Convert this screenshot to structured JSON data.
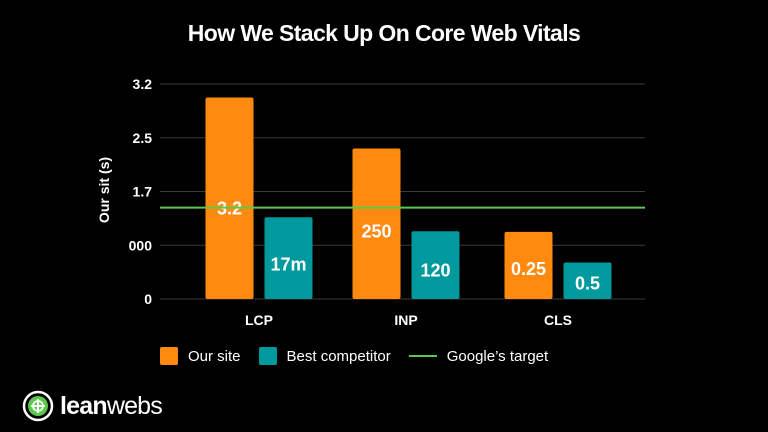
{
  "title": "How We Stack Up On Core Web Vitals",
  "colors": {
    "background": "#000000",
    "our_site": "#ff8a0f",
    "competitor": "#00999d",
    "target_line": "#5bc94b",
    "grid": "#3a3a3a",
    "text": "#ffffff"
  },
  "chart_data": {
    "type": "bar",
    "title": "How We Stack Up On Core Web Vitals",
    "ylabel": "Our sit (s)",
    "xlabel": "",
    "categories": [
      "LCP",
      "INP",
      "CLS"
    ],
    "ytick_labels": [
      "0",
      "000",
      "1.7",
      "2.5",
      "3.2"
    ],
    "ylim": [
      0,
      4
    ],
    "grid": true,
    "legend_position": "bottom",
    "series": [
      {
        "name": "Our site",
        "color": "#ff8a0f",
        "values": [
          3.75,
          2.8,
          1.25
        ],
        "labels": [
          "3.2",
          "250",
          "0.25"
        ]
      },
      {
        "name": "Best competitor",
        "color": "#00999d",
        "values": [
          1.52,
          1.26,
          0.68
        ],
        "labels": [
          "17m",
          "120",
          "0.5"
        ]
      }
    ],
    "reference_line": {
      "name": "Google’s target",
      "value": 1.7,
      "color": "#5bc94b"
    }
  },
  "legend": [
    {
      "label": "Our site",
      "kind": "box",
      "color": "#ff8a0f"
    },
    {
      "label": "Best competitor",
      "kind": "box",
      "color": "#00999d"
    },
    {
      "label": "Google’s target",
      "kind": "line",
      "color": "#5bc94b"
    }
  ],
  "logo": {
    "name": "leanwebs",
    "part1": "lean",
    "part2": "webs",
    "icon": "leanwebs-logo-icon"
  }
}
